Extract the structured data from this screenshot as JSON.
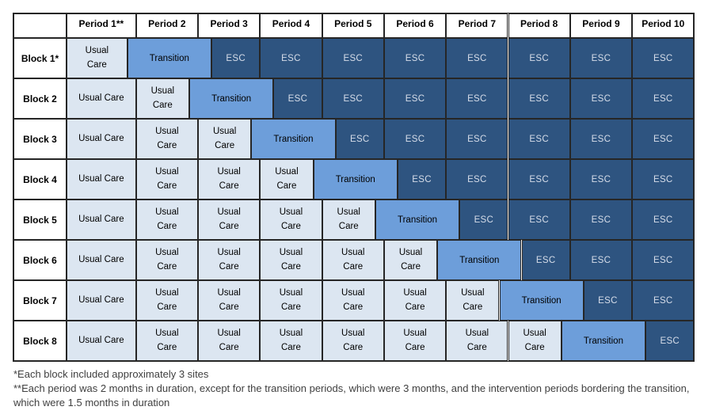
{
  "table": {
    "corner_label": "",
    "period_headers": [
      "Period 1**",
      "Period 2",
      "Period 3",
      "Period 4",
      "Period 5",
      "Period 6",
      "Period 7",
      "Period 8",
      "Period 9",
      "Period 10"
    ],
    "blocks": [
      {
        "label": "Block 1*",
        "transition_period": 1
      },
      {
        "label": "Block 2",
        "transition_period": 2
      },
      {
        "label": "Block 3",
        "transition_period": 3
      },
      {
        "label": "Block 4",
        "transition_period": 4
      },
      {
        "label": "Block 5",
        "transition_period": 5
      },
      {
        "label": "Block 6",
        "transition_period": 6
      },
      {
        "label": "Block 7",
        "transition_period": 7
      },
      {
        "label": "Block 8",
        "transition_period": 8
      }
    ],
    "cell_labels": {
      "usual_care": "Usual Care",
      "transition": "Transition",
      "intervention": "ESC"
    }
  },
  "design_notes": {
    "period_duration": "2 months",
    "transition_duration": "3 months",
    "bordering_intervention_duration": "1.5 months",
    "sites_per_block": "approximately 3"
  },
  "colors": {
    "usual_care_bg": "#dce6f1",
    "usual_care_text": "#000000",
    "transition_bg": "#6d9eda",
    "transition_text": "#000000",
    "esc_bg": "#2e5480",
    "esc_text": "#d6dde9",
    "border": "#262626",
    "header_text": "#000000",
    "footnote_text": "#404040"
  },
  "footnotes": [
    "*Each block included approximately 3 sites",
    "**Each period was 2 months in duration, except for the transition periods, which were 3 months, and the intervention periods bordering the transition, which were 1.5 months in duration"
  ]
}
